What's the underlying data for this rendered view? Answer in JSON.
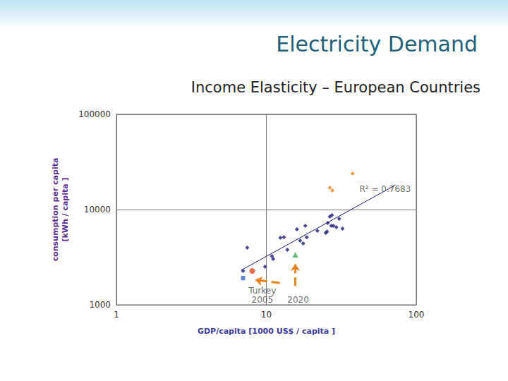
{
  "chart_data": {
    "type": "scatter",
    "title": "Electricity Demand",
    "subtitle": "Income Elasticity – European Countries",
    "x_label": "GDP/capita [1000 US$ / capita ]",
    "y_label": "consumption per capita\n[kWh / capita ]",
    "log": true,
    "grid": true,
    "xlim": [
      1,
      100
    ],
    "ylim": [
      1000,
      100000
    ],
    "xticks": [
      1,
      10,
      100
    ],
    "yticks": [
      1000,
      10000,
      100000
    ],
    "series": [
      {
        "type": "scatter",
        "color": "#1c1c78",
        "marker": "diamond",
        "x": [
          7.46,
          6.99,
          9.8,
          10.9,
          11.1,
          12.4,
          13.1,
          13.8,
          16.0,
          16.8,
          17.6,
          18.6,
          18.2,
          21.9,
          24.9,
          25.7,
          26.5,
          27.4,
          28.0,
          29.3,
          30.6,
          32.2,
          25.4,
          27.1
        ],
        "values": [
          3981,
          2268,
          2512,
          3243,
          3027,
          5058,
          5130,
          3784,
          6209,
          4720,
          4404,
          5130,
          6761,
          5995,
          5692,
          7228,
          8436,
          8730,
          6761,
          6529,
          8014,
          6310,
          5860,
          6761
        ]
      },
      {
        "type": "scatter",
        "color": "#e8841a",
        "marker": "diamond",
        "x": [
          26.5,
          27.6,
          37.6
        ],
        "values": [
          16980,
          15860,
          23880
        ]
      },
      {
        "type": "scatter",
        "color": "#3366cc",
        "marker": "square",
        "x": [
          6.99
        ],
        "values": [
          1910
        ]
      },
      {
        "type": "scatter",
        "color": "#e04a1a",
        "marker": "circle",
        "x": [
          8.05
        ],
        "values": [
          2268
        ]
      },
      {
        "type": "scatter",
        "color": "#3aa655",
        "marker": "triangle",
        "x": [
          15.6
        ],
        "values": [
          3357
        ]
      },
      {
        "type": "line",
        "color": "#1c1c78",
        "marker": "none",
        "line_style": "solid",
        "x": [
          6.8,
          73
        ],
        "values": [
          2307,
          18160
        ]
      },
      {
        "type": "line",
        "color": "#e8841a",
        "marker": "arrow",
        "line_style": "dashed",
        "x": [
          12.3,
          10.2,
          8.4
        ],
        "values": [
          1700,
          1760,
          1830
        ]
      },
      {
        "type": "line",
        "color": "#e8841a",
        "marker": "arrow",
        "line_style": "dashed",
        "x": [
          15.6,
          15.6
        ],
        "values": [
          1580,
          2700
        ]
      }
    ],
    "annotations": [
      {
        "text": "R² = 0.7683",
        "x": 62,
        "y": 16400
      },
      {
        "text": "Turkey",
        "x": 9.4,
        "y": 1400
      },
      {
        "text": "2005",
        "x": 9.4,
        "y": 1120
      },
      {
        "text": "2020",
        "x": 16.3,
        "y": 1120
      }
    ]
  }
}
